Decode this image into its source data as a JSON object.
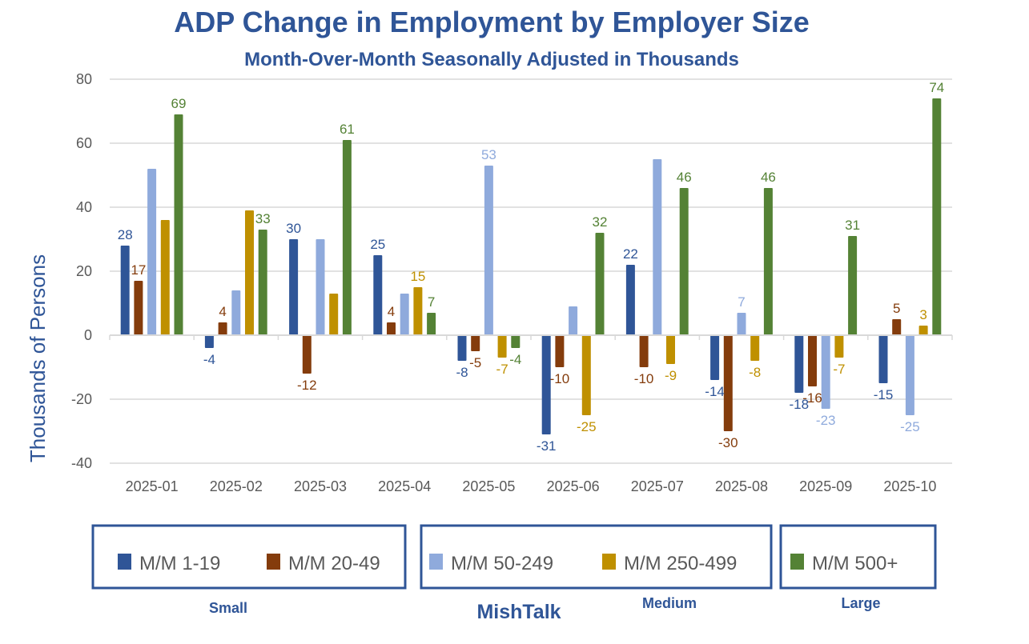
{
  "chart_data": {
    "type": "bar",
    "title": "ADP Change in Employment by Employer Size",
    "subtitle": "Month-Over-Month Seasonally Adjusted in Thousands",
    "xlabel": "",
    "ylabel": "Thousands of Persons",
    "ylim": [
      -40,
      80
    ],
    "yticks": [
      -40,
      -20,
      0,
      20,
      40,
      60,
      80
    ],
    "grid": true,
    "legend_position": "bottom",
    "categories": [
      "2025-01",
      "2025-02",
      "2025-03",
      "2025-04",
      "2025-05",
      "2025-06",
      "2025-07",
      "2025-08",
      "2025-09",
      "2025-10"
    ],
    "series": [
      {
        "name": "M/M 1-19",
        "color": "#2f5597",
        "values": [
          28,
          -4,
          30,
          25,
          -8,
          -31,
          22,
          -14,
          -18,
          -15
        ],
        "labels": [
          28,
          -4,
          30,
          25,
          -8,
          -31,
          22,
          -14,
          -18,
          -15
        ]
      },
      {
        "name": "M/M 20-49",
        "color": "#843c0c",
        "values": [
          17,
          4,
          -12,
          4,
          -5,
          -10,
          -10,
          -30,
          -16,
          5
        ],
        "labels": [
          17,
          4,
          -12,
          4,
          -5,
          -10,
          -10,
          -30,
          -16,
          5
        ]
      },
      {
        "name": "M/M 50-249",
        "color": "#8faadc",
        "values": [
          52,
          14,
          30,
          13,
          53,
          9,
          55,
          7,
          -23,
          -25
        ],
        "labels": [
          null,
          null,
          null,
          null,
          53,
          null,
          null,
          7,
          -23,
          -25
        ]
      },
      {
        "name": "M/M 250-499",
        "color": "#bf9000",
        "values": [
          36,
          39,
          13,
          15,
          -7,
          -25,
          -9,
          -8,
          -7,
          3
        ],
        "labels": [
          null,
          null,
          null,
          15,
          -7,
          -25,
          -9,
          -8,
          -7,
          3
        ]
      },
      {
        "name": "M/M 500+",
        "color": "#548235",
        "values": [
          69,
          33,
          61,
          7,
          -4,
          32,
          46,
          46,
          31,
          74
        ],
        "labels": [
          69,
          33,
          61,
          7,
          -4,
          32,
          46,
          46,
          31,
          74
        ]
      }
    ]
  },
  "legend_groups": [
    {
      "label": "Small",
      "series": [
        0,
        1
      ]
    },
    {
      "label": "Medium",
      "series": [
        2,
        3
      ]
    },
    {
      "label": "Large",
      "series": [
        4
      ]
    }
  ],
  "watermark": "MishTalk"
}
